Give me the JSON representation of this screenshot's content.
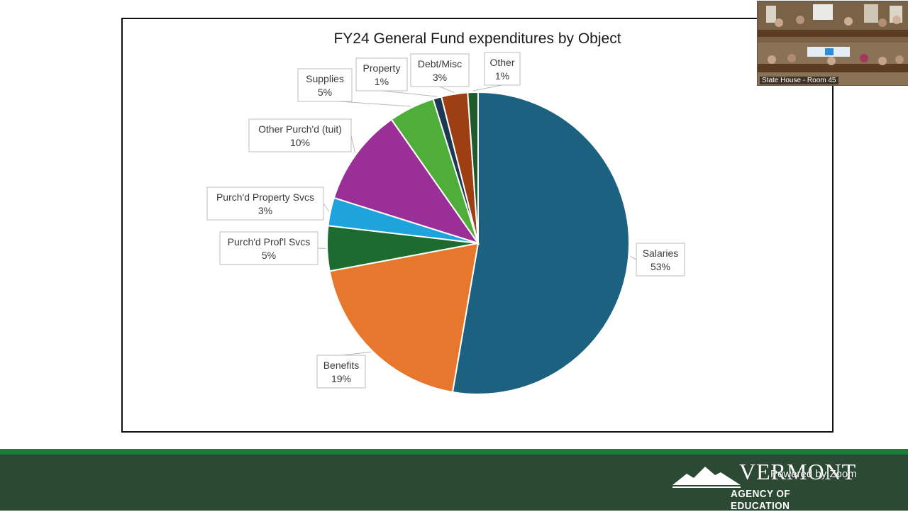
{
  "colors": {
    "salaries": "#1c6280",
    "benefits": "#e8772e",
    "purchd_profl_svcs": "#1d6b2e",
    "purchd_property_svcs": "#1ea3dc",
    "other_purchd": "#9b2f98",
    "supplies": "#4fad3a",
    "property": "#1c3854",
    "debt_misc": "#9e3f13",
    "other": "#1e5a2c",
    "footer_green": "#2c4a33",
    "footer_stripe": "#1f7a3c"
  },
  "chart_data": {
    "type": "pie",
    "title": "FY24 General Fund expenditures by Object",
    "start_category": "Salaries",
    "direction": "clockwise-from-top",
    "slices": [
      {
        "name": "Salaries",
        "percent_label": "53%",
        "value": 52.6
      },
      {
        "name": "Benefits",
        "percent_label": "19%",
        "value": 19.3
      },
      {
        "name": "Purch'd Prof'l Svcs",
        "percent_label": "5%",
        "value": 4.8
      },
      {
        "name": "Purch'd Property Svcs",
        "percent_label": "3%",
        "value": 3.0
      },
      {
        "name": "Other Purch'd (tuit)",
        "percent_label": "10%",
        "value": 10.4
      },
      {
        "name": "Supplies",
        "percent_label": "5%",
        "value": 4.9
      },
      {
        "name": "Property",
        "percent_label": "1%",
        "value": 0.9
      },
      {
        "name": "Debt/Misc",
        "percent_label": "3%",
        "value": 2.8
      },
      {
        "name": "Other",
        "percent_label": "1%",
        "value": 1.1
      }
    ]
  },
  "footer": {
    "logo_word": "VERMONT",
    "logo_sub": "AGENCY OF EDUCATION",
    "zoom_credit": "Powered by Zoom"
  },
  "video": {
    "label": "State House - Room 45"
  }
}
